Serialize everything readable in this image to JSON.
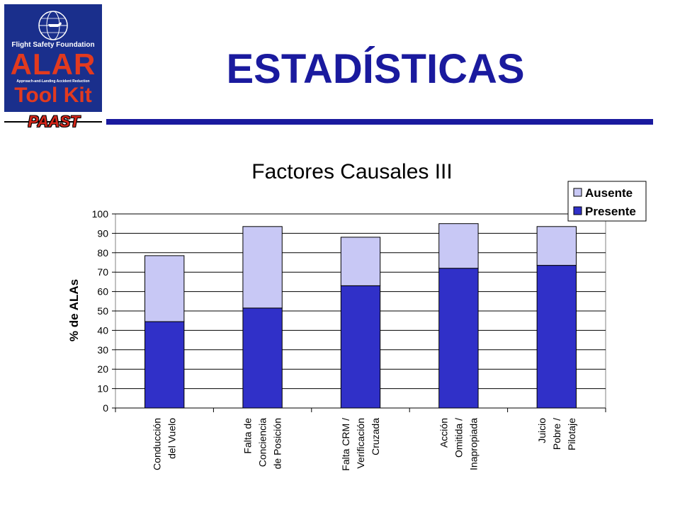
{
  "logo": {
    "org": "Flight Safety Foundation",
    "brand": "ALAR",
    "tagline": "Approach-and-Landing Accident Reduction",
    "product": "Tool Kit",
    "program": "PAAST"
  },
  "page_title": "ESTADÍSTICAS",
  "colors": {
    "title": "#1a1a9e",
    "ausente": "#c8c8f5",
    "presente": "#3030c8",
    "logo_bg": "#1a2f8c",
    "logo_text": "#e23a1f"
  },
  "chart_data": {
    "type": "bar",
    "stacked": true,
    "title": "Factores Causales III",
    "ylabel": "% de ALAs",
    "xlabel": "",
    "ylim": [
      0,
      100
    ],
    "ytick_step": 10,
    "grid": true,
    "legend_position": "top-right",
    "categories": [
      [
        "Conducción",
        "del Vuelo"
      ],
      [
        "Falta de",
        "Conciencia",
        "de Posición"
      ],
      [
        "Falta CRM /",
        "Verificación",
        "Cruzada"
      ],
      [
        "Acción",
        "Omitida /",
        "Inapropiada"
      ],
      [
        "Juicio",
        "Pobre /",
        "Pilotaje"
      ]
    ],
    "series": [
      {
        "name": "Presente",
        "values": [
          44.5,
          51.5,
          63,
          72,
          73.5
        ]
      },
      {
        "name": "Ausente",
        "values": [
          34,
          42,
          25,
          23,
          20
        ]
      }
    ],
    "legend_order": [
      "Ausente",
      "Presente"
    ]
  }
}
